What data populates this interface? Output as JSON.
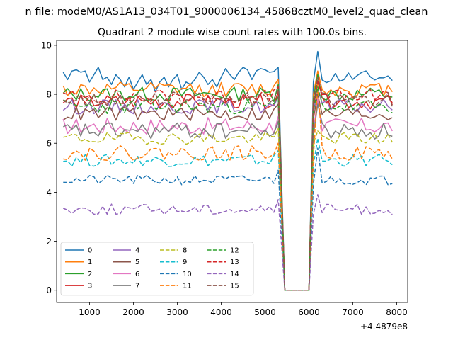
{
  "suptitle": "n file: modeM0/AS1A13_034T01_9000006134_45868cztM0_level2_quad_clean",
  "chart_data": {
    "type": "line",
    "title": "Quadrant 2 module wise count rates with 100.0s bins.",
    "xlabel": "",
    "ylabel": "",
    "offset_text": "+4.4879e8",
    "xlim": [
      250,
      8250
    ],
    "ylim": [
      -0.5,
      10.2
    ],
    "xticks": [
      1000,
      2000,
      3000,
      4000,
      5000,
      6000,
      7000,
      8000
    ],
    "yticks": [
      0,
      2,
      4,
      6,
      8,
      10
    ],
    "xtick_labels": [
      "1000",
      "2000",
      "3000",
      "4000",
      "5000",
      "6000",
      "7000",
      "8000"
    ],
    "ytick_labels": [
      "0",
      "2",
      "4",
      "6",
      "8",
      "10"
    ],
    "grid": false,
    "legend_position": "lower-left",
    "legend_columns": 4,
    "gap": {
      "drop_start": 5300,
      "zero_from": 5450,
      "zero_to": 6000,
      "rise_end": 6100
    },
    "series": [
      {
        "name": "0",
        "color": "#1f77b4",
        "dash": "solid",
        "base": 8.7,
        "noise": 0.28,
        "peak_after": 9.75,
        "seed": 11,
        "values_before": [
          8.9,
          8.6,
          8.95,
          9.0,
          8.9,
          8.95,
          8.5,
          8.8,
          9.1,
          8.6,
          8.7,
          8.4,
          8.8,
          8.6,
          8.3,
          8.7,
          8.2,
          8.5,
          8.8,
          8.4,
          8.6,
          8.1,
          8.5,
          8.7,
          8.3,
          8.6,
          8.8,
          8.2,
          8.5,
          8.4,
          8.6,
          8.9,
          8.7,
          8.4,
          8.6,
          8.3,
          8.7,
          9.05,
          8.8,
          8.6,
          8.9,
          9.1,
          9.0,
          8.6,
          8.95,
          9.05,
          9.0,
          8.9
        ]
      },
      {
        "name": "1",
        "color": "#ff7f0e",
        "dash": "solid",
        "base": 8.2,
        "noise": 0.3,
        "peak_after": 8.95,
        "seed": 12
      },
      {
        "name": "2",
        "color": "#2ca02c",
        "dash": "solid",
        "base": 8.0,
        "noise": 0.3,
        "peak_after": 8.8,
        "seed": 13
      },
      {
        "name": "3",
        "color": "#d62728",
        "dash": "solid",
        "base": 7.7,
        "noise": 0.3,
        "peak_after": 8.5,
        "seed": 14
      },
      {
        "name": "4",
        "color": "#9467bd",
        "dash": "solid",
        "base": 7.5,
        "noise": 0.3,
        "peak_after": 8.2,
        "seed": 15
      },
      {
        "name": "5",
        "color": "#8c564b",
        "dash": "solid",
        "base": 7.2,
        "noise": 0.3,
        "peak_after": 8.0,
        "seed": 16
      },
      {
        "name": "6",
        "color": "#e377c2",
        "dash": "solid",
        "base": 6.7,
        "noise": 0.35,
        "peak_after": 7.8,
        "seed": 17
      },
      {
        "name": "7",
        "color": "#7f7f7f",
        "dash": "solid",
        "base": 6.5,
        "noise": 0.35,
        "peak_after": 7.6,
        "seed": 18
      },
      {
        "name": "8",
        "color": "#bcbd22",
        "dash": "dashed",
        "base": 6.2,
        "noise": 0.25,
        "peak_after": 6.5,
        "seed": 19
      },
      {
        "name": "9",
        "color": "#17becf",
        "dash": "dashed",
        "base": 5.3,
        "noise": 0.25,
        "peak_after": 6.2,
        "seed": 20
      },
      {
        "name": "10",
        "color": "#1f77b4",
        "dash": "dashed",
        "base": 4.5,
        "noise": 0.2,
        "peak_after": 5.8,
        "seed": 21
      },
      {
        "name": "11",
        "color": "#ff7f0e",
        "dash": "dashed",
        "base": 5.6,
        "noise": 0.3,
        "peak_after": 8.4,
        "seed": 22
      },
      {
        "name": "12",
        "color": "#2ca02c",
        "dash": "dashed",
        "base": 7.5,
        "noise": 0.3,
        "peak_after": 8.3,
        "seed": 23
      },
      {
        "name": "13",
        "color": "#d62728",
        "dash": "dashed",
        "base": 7.9,
        "noise": 0.3,
        "peak_after": 8.6,
        "seed": 24
      },
      {
        "name": "14",
        "color": "#9467bd",
        "dash": "dashed",
        "base": 3.3,
        "noise": 0.22,
        "peak_after": 3.9,
        "seed": 25
      },
      {
        "name": "15",
        "color": "#8c564b",
        "dash": "dashed",
        "base": 7.8,
        "noise": 0.3,
        "peak_after": 8.7,
        "seed": 26
      }
    ]
  }
}
